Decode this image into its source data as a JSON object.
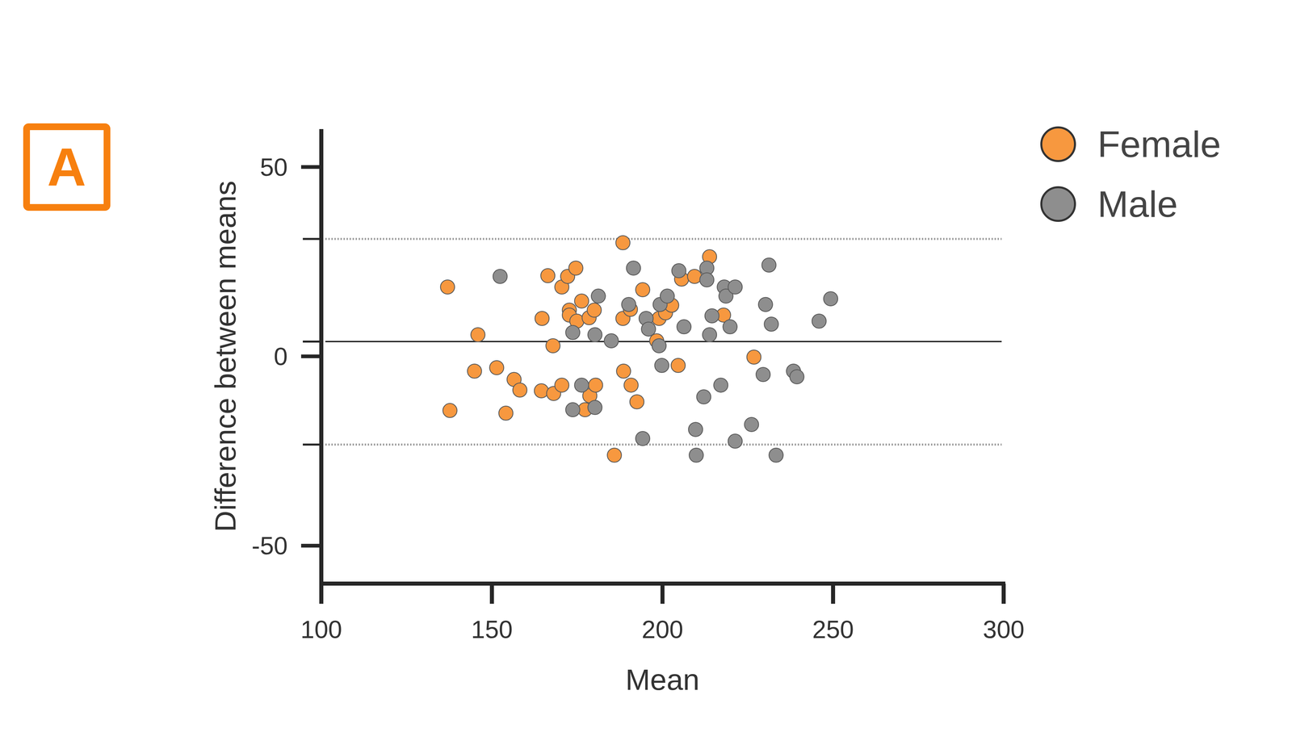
{
  "chart_data": {
    "type": "scatter",
    "panel_label": "A",
    "xlabel": "Mean",
    "ylabel": "Difference between means",
    "xlim": [
      100,
      300
    ],
    "ylim": [
      -60,
      60
    ],
    "xticks": [
      100,
      150,
      200,
      250,
      300
    ],
    "yticks": [
      -50,
      0,
      50
    ],
    "bias": 3.9,
    "limits_of_agreement": [
      -23.3,
      31
    ],
    "legend": "top-right",
    "marker": "circle",
    "series": [
      {
        "name": "Female",
        "color": "#f7983f",
        "x": [
          137.0,
          137.7,
          145.9,
          144.9,
          151.4,
          154.1,
          156.5,
          158.2,
          164.7,
          164.5,
          166.4,
          167.9,
          168.1,
          170.5,
          170.5,
          172.2,
          172.7,
          172.7,
          174.6,
          174.9,
          176.3,
          177.3,
          178.5,
          178.7,
          180.0,
          180.4,
          185.9,
          188.4,
          188.4,
          188.6,
          190.6,
          190.8,
          192.5,
          194.2,
          198.3,
          199.0,
          200.9,
          202.7,
          204.6,
          205.6,
          209.4,
          213.8,
          217.9,
          226.8
        ],
        "values": [
          18.3,
          -14.3,
          5.7,
          -3.9,
          -3.0,
          -15.0,
          -6.1,
          -8.9,
          10.0,
          -9.1,
          21.3,
          2.8,
          -9.8,
          18.3,
          -7.6,
          21.1,
          12.2,
          10.9,
          23.3,
          9.3,
          14.6,
          -14.1,
          10.2,
          -10.4,
          12.2,
          -7.6,
          -26.1,
          30.0,
          10.0,
          -3.9,
          12.4,
          -7.6,
          -12.0,
          17.6,
          4.1,
          10.0,
          11.5,
          13.5,
          -2.4,
          20.4,
          21.1,
          26.3,
          10.9,
          -0.2
        ]
      },
      {
        "name": "Male",
        "color": "#8e8e8e",
        "x": [
          152.4,
          173.7,
          173.7,
          176.3,
          180.2,
          180.2,
          181.2,
          185.0,
          190.1,
          191.5,
          194.2,
          195.2,
          195.9,
          199.0,
          199.3,
          199.8,
          201.4,
          204.8,
          206.3,
          209.7,
          209.9,
          212.1,
          213.0,
          213.0,
          213.8,
          214.5,
          217.1,
          218.1,
          218.6,
          219.8,
          221.3,
          221.3,
          226.1,
          229.5,
          230.2,
          231.2,
          231.9,
          233.3,
          238.4,
          239.4,
          245.9,
          249.3
        ],
        "values": [
          21.1,
          6.3,
          -14.1,
          -7.6,
          5.7,
          -13.5,
          15.9,
          4.1,
          13.7,
          23.3,
          -21.7,
          10.0,
          7.2,
          2.8,
          13.7,
          -2.4,
          15.9,
          22.6,
          7.8,
          -19.3,
          -26.1,
          -10.7,
          23.3,
          20.2,
          5.7,
          10.7,
          -7.6,
          18.3,
          15.9,
          7.8,
          -22.4,
          18.3,
          -18.0,
          -4.8,
          13.7,
          24.1,
          8.5,
          -26.1,
          -3.9,
          -5.4,
          9.3,
          15.2
        ]
      }
    ]
  }
}
